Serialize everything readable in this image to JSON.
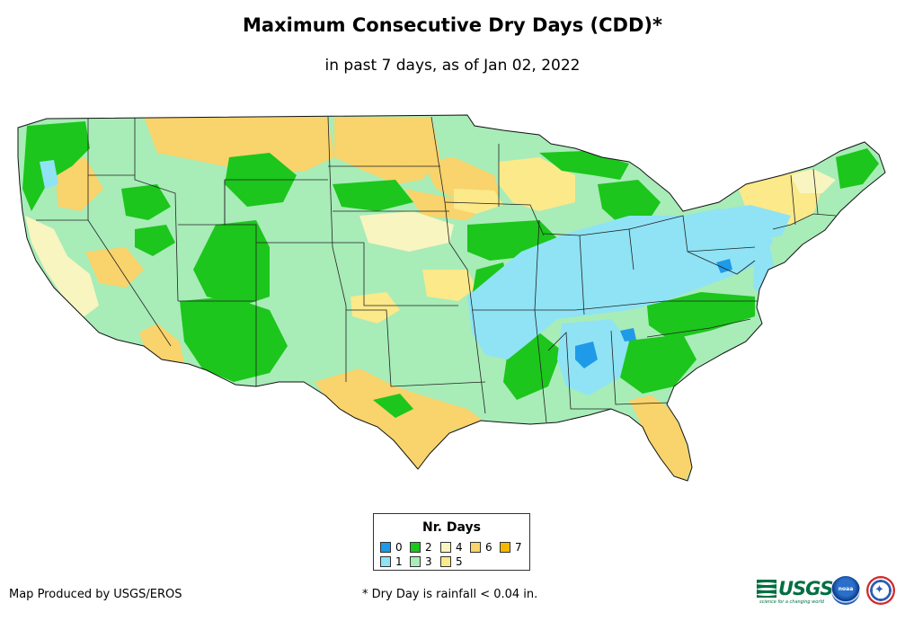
{
  "title": "Maximum Consecutive Dry Days (CDD)*",
  "subtitle": "in past 7 days, as of Jan 02, 2022",
  "legend": {
    "title": "Nr. Days",
    "items": [
      {
        "label": "0",
        "color": "#1e9ae8"
      },
      {
        "label": "1",
        "color": "#8fe3f5"
      },
      {
        "label": "2",
        "color": "#1cc61c"
      },
      {
        "label": "3",
        "color": "#a8ecb8"
      },
      {
        "label": "4",
        "color": "#f8f5c0"
      },
      {
        "label": "5",
        "color": "#fbe98a"
      },
      {
        "label": "6",
        "color": "#f9d36b"
      },
      {
        "label": "7",
        "color": "#f5b800"
      }
    ]
  },
  "producer": "Map Produced by USGS/EROS",
  "footnote": "* Dry Day is rainfall < 0.04 in.",
  "logos": {
    "usgs": "USGS",
    "usgs_tagline": "science for a changing world",
    "noaa": "noaa"
  },
  "icons": [
    "usgs-logo-icon",
    "noaa-logo-icon",
    "nws-logo-icon"
  ]
}
